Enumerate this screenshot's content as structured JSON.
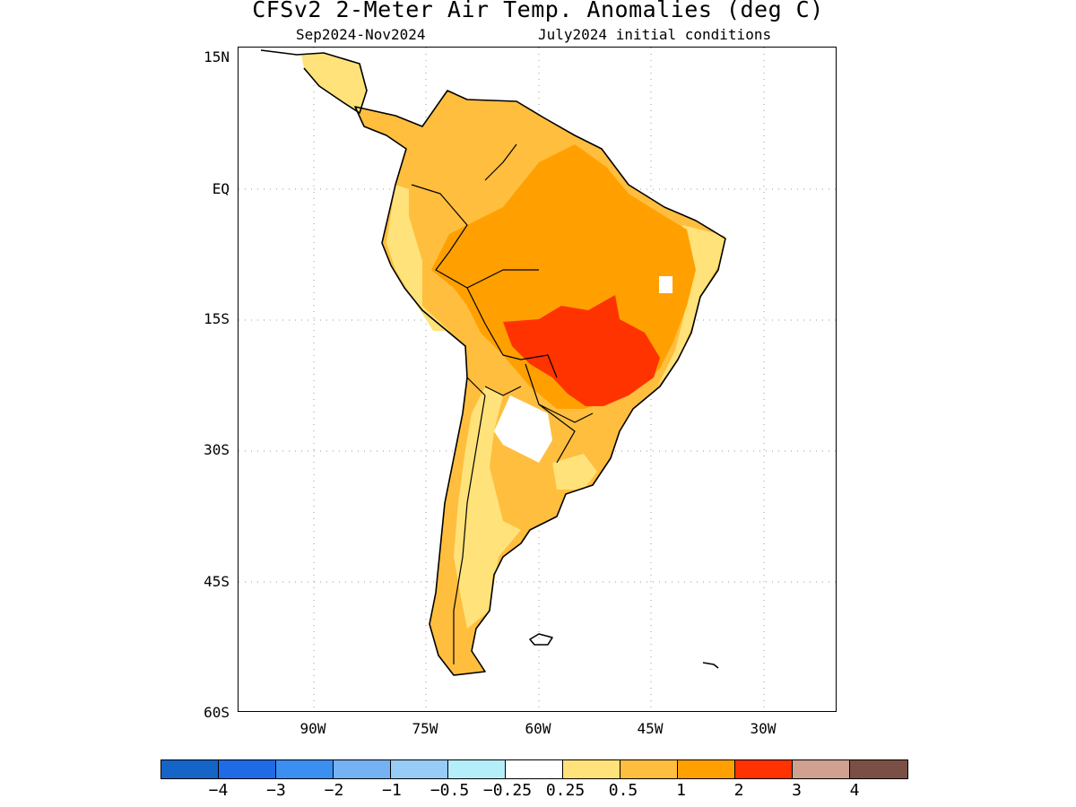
{
  "header": {
    "title": "CFSv2 2-Meter Air Temp. Anomalies (deg C)",
    "period": "Sep2024-Nov2024",
    "init": "July2024 initial conditions"
  },
  "axes": {
    "lat_labels": [
      "15N",
      "EQ",
      "15S",
      "30S",
      "45S",
      "60S"
    ],
    "lon_labels": [
      "90W",
      "75W",
      "60W",
      "45W",
      "30W"
    ],
    "lat_range": [
      -60,
      15
    ],
    "lon_range": [
      -100,
      -20
    ]
  },
  "legend": {
    "colors": [
      "#1565c8",
      "#1f6ae6",
      "#3a8ff0",
      "#74b2f4",
      "#96ccf6",
      "#b4eef9",
      "#ffffff",
      "#ffe27a",
      "#ffbe3e",
      "#ffa000",
      "#ff3300",
      "#d0a090",
      "#7a5046"
    ],
    "labels": [
      "-4",
      "-3",
      "-2",
      "-1",
      "-0.5",
      "-0.25",
      "0.25",
      "0.5",
      "1",
      "2",
      "3",
      "4"
    ]
  },
  "fill_colors": {
    "light": "#ffe27a",
    "medium": "#ffbe3e",
    "strong": "#ffa000",
    "hot": "#ff3300",
    "neutral": "#ffffff"
  }
}
